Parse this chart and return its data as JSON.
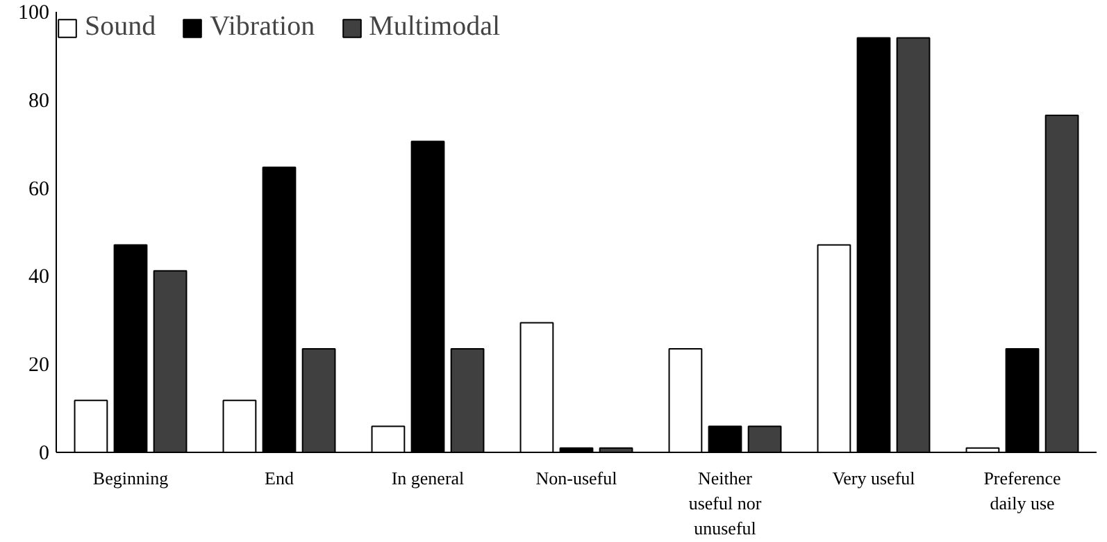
{
  "chart_data": {
    "type": "bar",
    "categories": [
      "Beginning",
      "End",
      "In general",
      "Non-useful",
      "Neither\nuseful nor\nunuseful",
      "Very useful",
      "Preference\ndaily use"
    ],
    "series": [
      {
        "name": "Sound",
        "color": "#ffffff",
        "values": [
          11.8,
          11.8,
          5.9,
          29.4,
          23.5,
          47.1,
          1
        ]
      },
      {
        "name": "Vibration",
        "color": "#000000",
        "values": [
          47.1,
          64.7,
          70.6,
          1,
          5.9,
          94.1,
          23.5
        ]
      },
      {
        "name": "Multimodal",
        "color": "#404040",
        "values": [
          41.2,
          23.5,
          23.5,
          1,
          5.9,
          94.1,
          76.5
        ]
      }
    ],
    "ylim": [
      0,
      100
    ],
    "yticks": [
      0,
      20,
      40,
      60,
      80,
      100
    ],
    "grid": false,
    "legend": "top left"
  }
}
